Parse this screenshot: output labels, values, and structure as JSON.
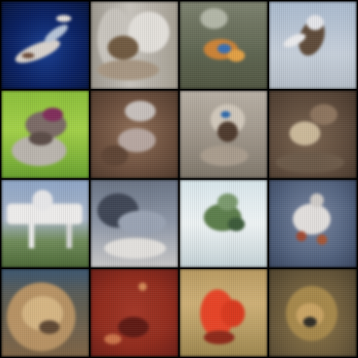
{
  "image_grid": {
    "rows": 4,
    "cols": 4,
    "tiles": [
      {
        "subject": "blurry-bird-over-dark-blue-water",
        "palette": [
          "#0a1f55",
          "#1b3f8c",
          "#c9c5c3"
        ]
      },
      {
        "subject": "blurry-animal-on-grey-background",
        "palette": [
          "#8a8478",
          "#c6c2bb",
          "#6e5a44"
        ]
      },
      {
        "subject": "blurry-colorful-object-on-olive-ground",
        "palette": [
          "#5f6552",
          "#9aa090",
          "#c9823c"
        ]
      },
      {
        "subject": "blurry-bird-against-pale-blue-sky",
        "palette": [
          "#9fb2c8",
          "#c7d0da",
          "#5d4a3a"
        ]
      },
      {
        "subject": "blurry-animal-on-green-grass",
        "palette": [
          "#7fb33a",
          "#a6cf4f",
          "#6e5f5a"
        ]
      },
      {
        "subject": "blurry-brown-animal-closeup",
        "palette": [
          "#6d5140",
          "#9b7a63",
          "#c9c2bf"
        ]
      },
      {
        "subject": "blurry-grey-animal-face",
        "palette": [
          "#8a8278",
          "#c0b9ae",
          "#4d3a2e"
        ]
      },
      {
        "subject": "blurry-dark-brown-animal",
        "palette": [
          "#5c4a3c",
          "#8c7560",
          "#c9b89b"
        ]
      },
      {
        "subject": "blurry-white-vehicle-on-grass",
        "palette": [
          "#8fa2bd",
          "#e6e4e2",
          "#4e6a3a"
        ]
      },
      {
        "subject": "blurry-grey-object-cloudy-sky",
        "palette": [
          "#6c7684",
          "#9aa3b2",
          "#d8d6d4"
        ]
      },
      {
        "subject": "blurry-green-object-on-white",
        "palette": [
          "#dfe9ec",
          "#5d7d4e",
          "#aabfc4"
        ]
      },
      {
        "subject": "blurry-white-animal-on-blue",
        "palette": [
          "#54637e",
          "#d9d7d6",
          "#9c4a34"
        ]
      },
      {
        "subject": "blurry-furry-animal-closeup",
        "palette": [
          "#7e6548",
          "#c4a47a",
          "#3e4e60"
        ]
      },
      {
        "subject": "blurry-red-background-object",
        "palette": [
          "#8e2d1f",
          "#5b1a14",
          "#c9764e"
        ]
      },
      {
        "subject": "blurry-red-object-on-sand",
        "palette": [
          "#c79e62",
          "#e0462a",
          "#8d7a4b"
        ]
      },
      {
        "subject": "blurry-brown-animal-on-olive",
        "palette": [
          "#6c5c3e",
          "#a5884e",
          "#2f2c25"
        ]
      }
    ]
  }
}
